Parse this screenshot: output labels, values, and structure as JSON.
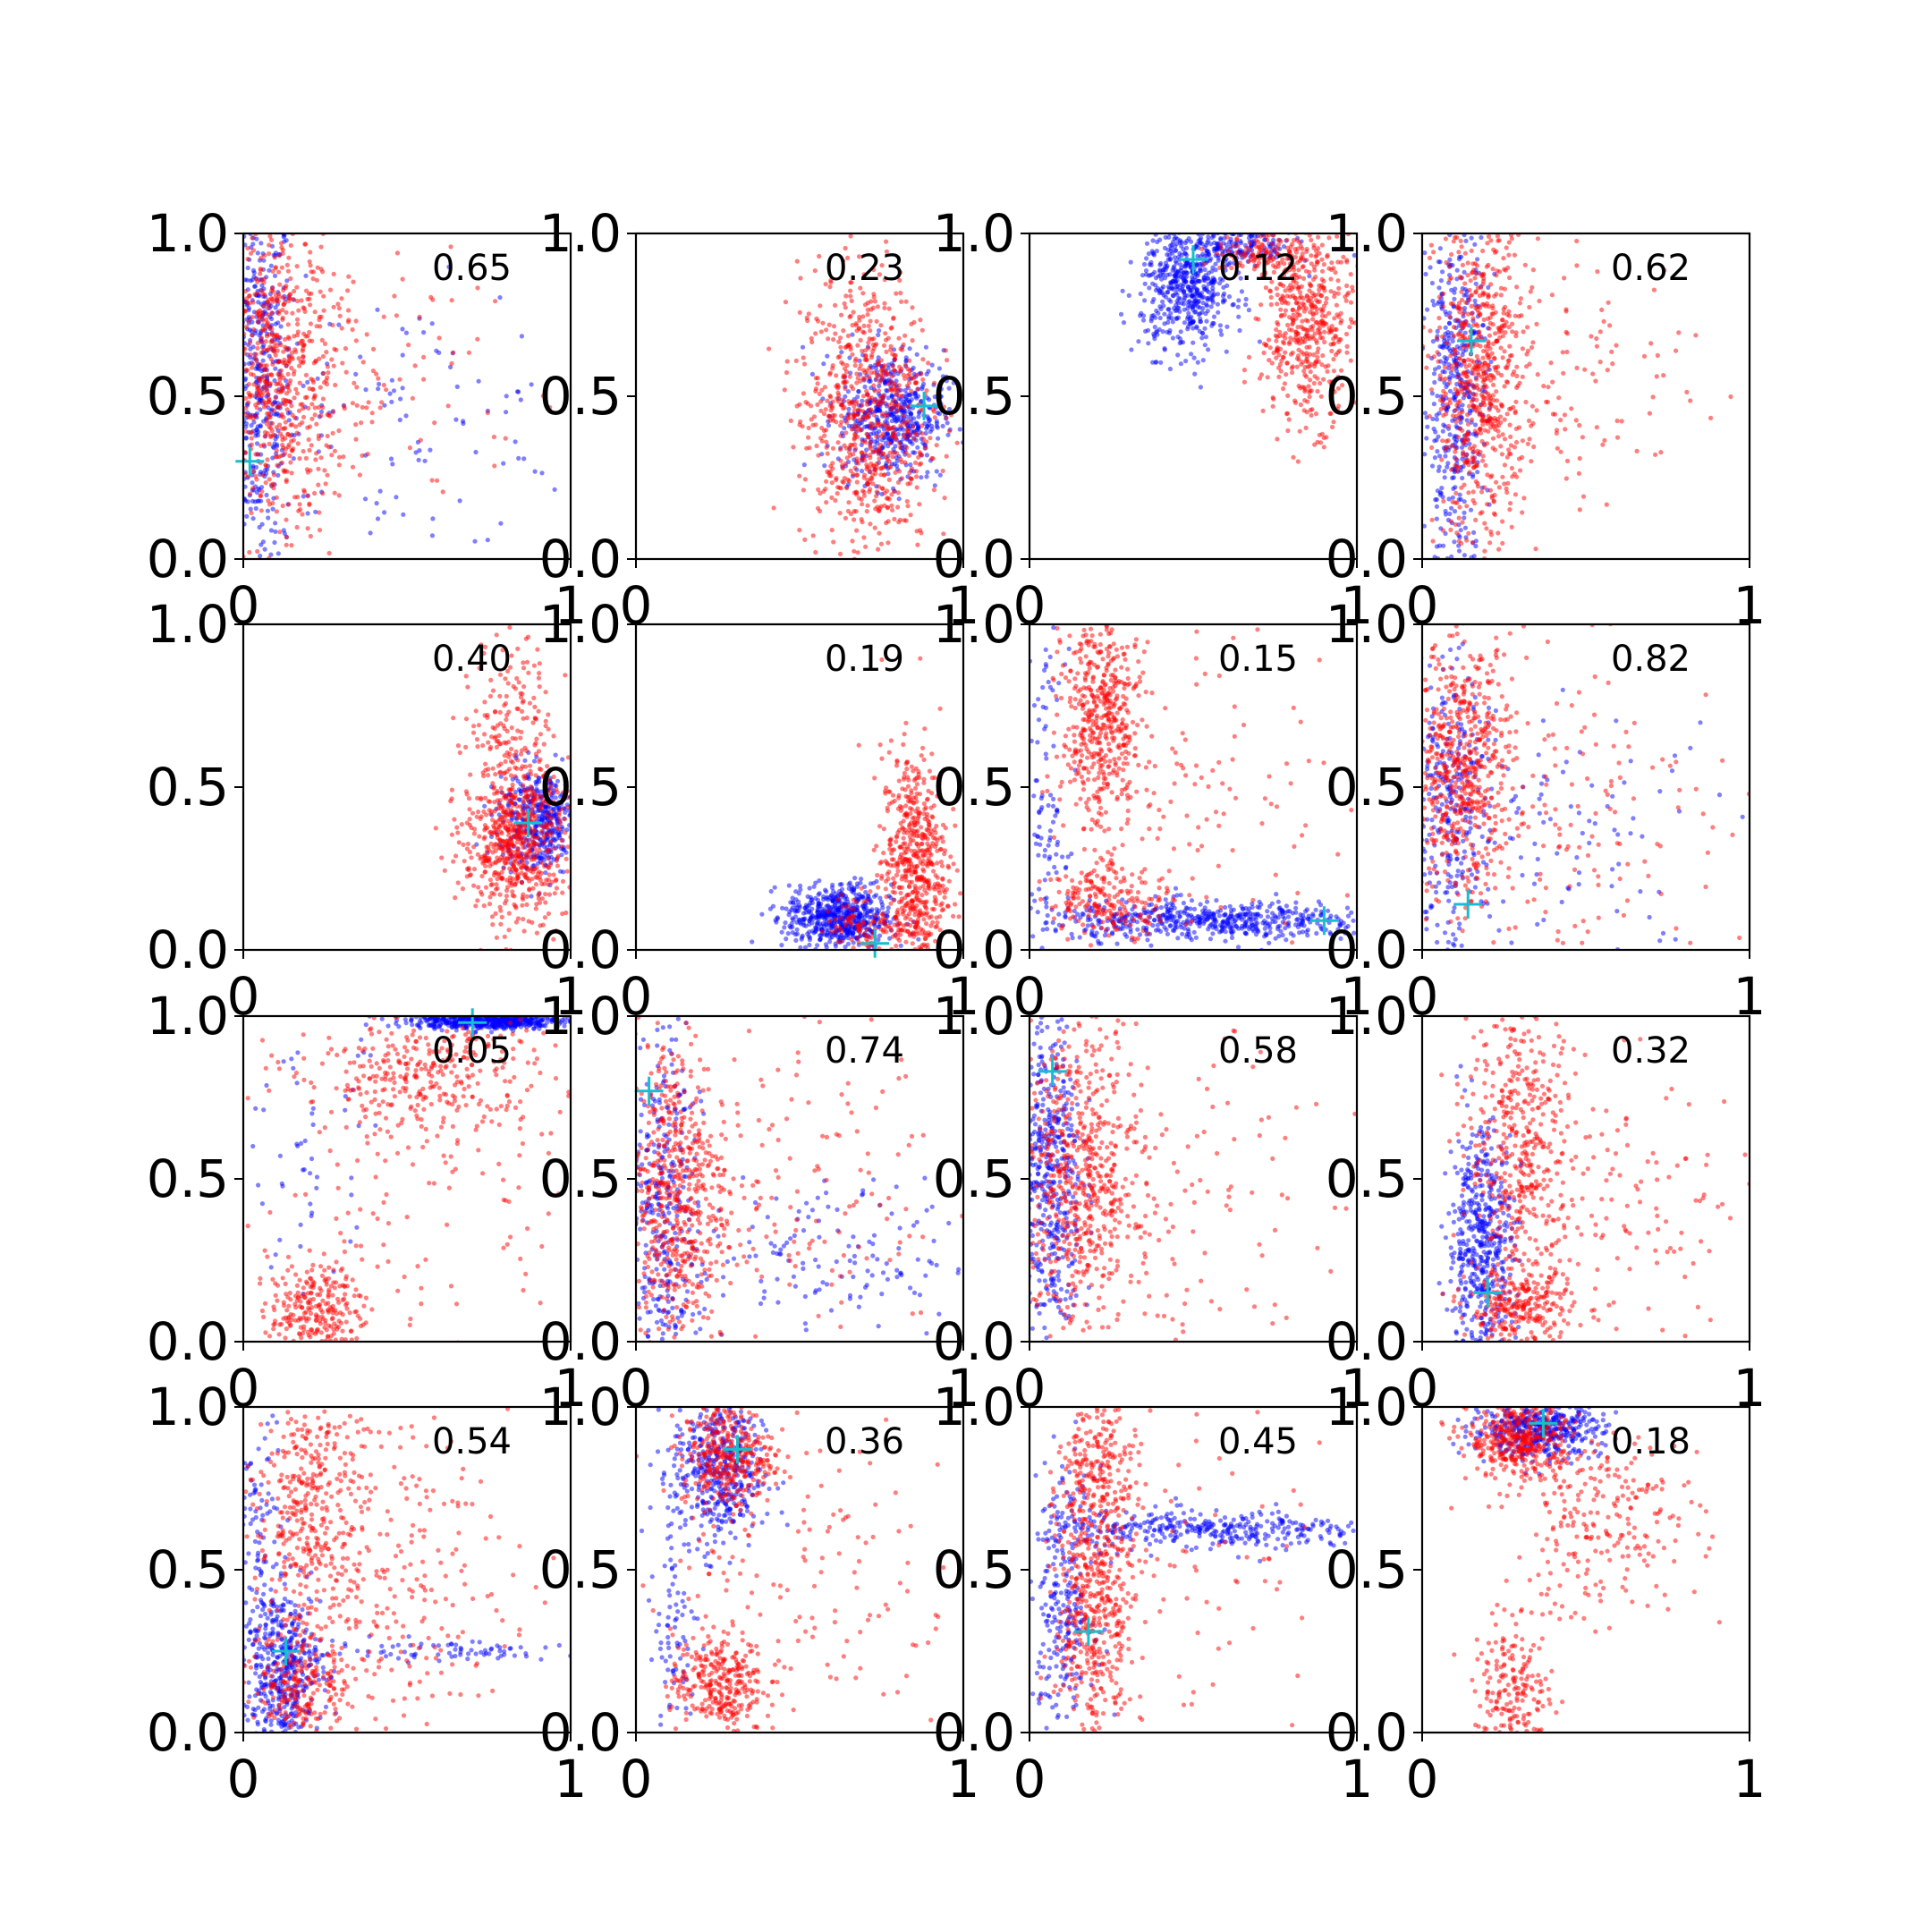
{
  "chart_data": {
    "type": "scatter",
    "rows": 4,
    "cols": 4,
    "xlim": [
      0,
      1
    ],
    "ylim": [
      0,
      1
    ],
    "xticks": [
      "0",
      "1"
    ],
    "yticks": [
      "0.0",
      "0.5",
      "1.0"
    ],
    "grid": false,
    "legend": "none",
    "colors": {
      "series_a": "#0000ff",
      "series_b": "#ff0000",
      "marker": "#17becf",
      "axis": "#000000"
    },
    "panels": [
      {
        "score": "0.65",
        "marker": [
          0.02,
          0.3
        ],
        "series_a": [
          {
            "cx": 0.05,
            "cy": 0.55,
            "sx": 0.05,
            "sy": 0.3,
            "n": 450
          },
          {
            "cx": 0.45,
            "cy": 0.42,
            "sx": 0.3,
            "sy": 0.2,
            "n": 120
          }
        ],
        "series_b": [
          {
            "cx": 0.1,
            "cy": 0.55,
            "sx": 0.09,
            "sy": 0.25,
            "n": 650
          },
          {
            "cx": 0.35,
            "cy": 0.55,
            "sx": 0.25,
            "sy": 0.25,
            "n": 140
          }
        ]
      },
      {
        "score": "0.23",
        "marker": [
          0.88,
          0.47
        ],
        "series_a": [
          {
            "cx": 0.78,
            "cy": 0.44,
            "sx": 0.08,
            "sy": 0.1,
            "n": 520
          }
        ],
        "series_b": [
          {
            "cx": 0.7,
            "cy": 0.45,
            "sx": 0.1,
            "sy": 0.22,
            "n": 750
          }
        ]
      },
      {
        "score": "0.12",
        "marker": [
          0.5,
          0.92
        ],
        "series_a": [
          {
            "cx": 0.48,
            "cy": 0.84,
            "sx": 0.07,
            "sy": 0.1,
            "n": 550
          },
          {
            "cx": 0.65,
            "cy": 0.96,
            "sx": 0.08,
            "sy": 0.03,
            "n": 150
          }
        ],
        "series_b": [
          {
            "cx": 0.85,
            "cy": 0.72,
            "sx": 0.07,
            "sy": 0.15,
            "n": 500
          },
          {
            "cx": 0.72,
            "cy": 0.94,
            "sx": 0.08,
            "sy": 0.04,
            "n": 120
          }
        ]
      },
      {
        "score": "0.62",
        "marker": [
          0.15,
          0.67
        ],
        "series_a": [
          {
            "cx": 0.1,
            "cy": 0.5,
            "sx": 0.05,
            "sy": 0.28,
            "n": 450
          }
        ],
        "series_b": [
          {
            "cx": 0.18,
            "cy": 0.55,
            "sx": 0.07,
            "sy": 0.25,
            "n": 650
          },
          {
            "cx": 0.45,
            "cy": 0.55,
            "sx": 0.2,
            "sy": 0.2,
            "n": 130
          }
        ]
      },
      {
        "score": "0.40",
        "marker": [
          0.87,
          0.39
        ],
        "series_a": [
          {
            "cx": 0.9,
            "cy": 0.4,
            "sx": 0.06,
            "sy": 0.08,
            "n": 420
          }
        ],
        "series_b": [
          {
            "cx": 0.83,
            "cy": 0.33,
            "sx": 0.08,
            "sy": 0.12,
            "n": 650
          },
          {
            "cx": 0.82,
            "cy": 0.72,
            "sx": 0.06,
            "sy": 0.14,
            "n": 150
          }
        ]
      },
      {
        "score": "0.19",
        "marker": [
          0.73,
          0.02
        ],
        "series_a": [
          {
            "cx": 0.62,
            "cy": 0.1,
            "sx": 0.08,
            "sy": 0.05,
            "n": 600
          }
        ],
        "series_b": [
          {
            "cx": 0.85,
            "cy": 0.25,
            "sx": 0.05,
            "sy": 0.18,
            "n": 600
          },
          {
            "cx": 0.7,
            "cy": 0.08,
            "sx": 0.06,
            "sy": 0.05,
            "n": 100
          }
        ]
      },
      {
        "score": "0.15",
        "marker": [
          0.9,
          0.09
        ],
        "series_a": [
          {
            "cx": 0.55,
            "cy": 0.09,
            "sx": 0.25,
            "sy": 0.03,
            "n": 550
          },
          {
            "cx": 0.05,
            "cy": 0.4,
            "sx": 0.03,
            "sy": 0.25,
            "n": 100
          }
        ],
        "series_b": [
          {
            "cx": 0.22,
            "cy": 0.7,
            "sx": 0.06,
            "sy": 0.18,
            "n": 500
          },
          {
            "cx": 0.25,
            "cy": 0.15,
            "sx": 0.1,
            "sy": 0.05,
            "n": 200
          },
          {
            "cx": 0.5,
            "cy": 0.5,
            "sx": 0.25,
            "sy": 0.25,
            "n": 120
          }
        ]
      },
      {
        "score": "0.82",
        "marker": [
          0.14,
          0.14
        ],
        "series_a": [
          {
            "cx": 0.08,
            "cy": 0.4,
            "sx": 0.06,
            "sy": 0.25,
            "n": 300
          },
          {
            "cx": 0.45,
            "cy": 0.35,
            "sx": 0.25,
            "sy": 0.2,
            "n": 100
          }
        ],
        "series_b": [
          {
            "cx": 0.12,
            "cy": 0.55,
            "sx": 0.08,
            "sy": 0.2,
            "n": 600
          },
          {
            "cx": 0.5,
            "cy": 0.4,
            "sx": 0.25,
            "sy": 0.25,
            "n": 150
          }
        ]
      },
      {
        "score": "0.05",
        "marker": [
          0.7,
          0.98
        ],
        "series_a": [
          {
            "cx": 0.75,
            "cy": 0.985,
            "sx": 0.12,
            "sy": 0.012,
            "n": 550
          },
          {
            "cx": 0.2,
            "cy": 0.6,
            "sx": 0.08,
            "sy": 0.25,
            "n": 60
          }
        ],
        "series_b": [
          {
            "cx": 0.55,
            "cy": 0.82,
            "sx": 0.2,
            "sy": 0.1,
            "n": 350
          },
          {
            "cx": 0.22,
            "cy": 0.1,
            "sx": 0.07,
            "sy": 0.07,
            "n": 250
          },
          {
            "cx": 0.5,
            "cy": 0.45,
            "sx": 0.25,
            "sy": 0.25,
            "n": 100
          }
        ]
      },
      {
        "score": "0.74",
        "marker": [
          0.04,
          0.77
        ],
        "series_a": [
          {
            "cx": 0.08,
            "cy": 0.4,
            "sx": 0.06,
            "sy": 0.28,
            "n": 350
          },
          {
            "cx": 0.55,
            "cy": 0.25,
            "sx": 0.25,
            "sy": 0.12,
            "n": 150
          }
        ],
        "series_b": [
          {
            "cx": 0.12,
            "cy": 0.45,
            "sx": 0.08,
            "sy": 0.25,
            "n": 600
          },
          {
            "cx": 0.45,
            "cy": 0.5,
            "sx": 0.25,
            "sy": 0.25,
            "n": 150
          }
        ]
      },
      {
        "score": "0.58",
        "marker": [
          0.07,
          0.83
        ],
        "series_a": [
          {
            "cx": 0.06,
            "cy": 0.5,
            "sx": 0.05,
            "sy": 0.28,
            "n": 500
          }
        ],
        "series_b": [
          {
            "cx": 0.15,
            "cy": 0.5,
            "sx": 0.09,
            "sy": 0.25,
            "n": 600
          },
          {
            "cx": 0.45,
            "cy": 0.4,
            "sx": 0.25,
            "sy": 0.25,
            "n": 150
          }
        ]
      },
      {
        "score": "0.32",
        "marker": [
          0.2,
          0.15
        ],
        "series_a": [
          {
            "cx": 0.18,
            "cy": 0.3,
            "sx": 0.05,
            "sy": 0.18,
            "n": 500
          }
        ],
        "series_b": [
          {
            "cx": 0.3,
            "cy": 0.6,
            "sx": 0.08,
            "sy": 0.25,
            "n": 450
          },
          {
            "cx": 0.3,
            "cy": 0.1,
            "sx": 0.08,
            "sy": 0.06,
            "n": 250
          },
          {
            "cx": 0.6,
            "cy": 0.4,
            "sx": 0.22,
            "sy": 0.22,
            "n": 150
          }
        ]
      },
      {
        "score": "0.54",
        "marker": [
          0.13,
          0.25
        ],
        "series_a": [
          {
            "cx": 0.12,
            "cy": 0.2,
            "sx": 0.06,
            "sy": 0.12,
            "n": 450
          },
          {
            "cx": 0.55,
            "cy": 0.25,
            "sx": 0.25,
            "sy": 0.02,
            "n": 80
          },
          {
            "cx": 0.05,
            "cy": 0.6,
            "sx": 0.04,
            "sy": 0.2,
            "n": 100
          }
        ],
        "series_b": [
          {
            "cx": 0.2,
            "cy": 0.7,
            "sx": 0.08,
            "sy": 0.2,
            "n": 350
          },
          {
            "cx": 0.4,
            "cy": 0.45,
            "sx": 0.2,
            "sy": 0.25,
            "n": 300
          },
          {
            "cx": 0.18,
            "cy": 0.15,
            "sx": 0.07,
            "sy": 0.08,
            "n": 200
          }
        ]
      },
      {
        "score": "0.36",
        "marker": [
          0.31,
          0.87
        ],
        "series_a": [
          {
            "cx": 0.25,
            "cy": 0.8,
            "sx": 0.07,
            "sy": 0.12,
            "n": 450
          },
          {
            "cx": 0.12,
            "cy": 0.3,
            "sx": 0.04,
            "sy": 0.2,
            "n": 80
          }
        ],
        "series_b": [
          {
            "cx": 0.28,
            "cy": 0.85,
            "sx": 0.07,
            "sy": 0.08,
            "n": 350
          },
          {
            "cx": 0.25,
            "cy": 0.15,
            "sx": 0.07,
            "sy": 0.08,
            "n": 300
          },
          {
            "cx": 0.5,
            "cy": 0.5,
            "sx": 0.25,
            "sy": 0.25,
            "n": 150
          }
        ]
      },
      {
        "score": "0.45",
        "marker": [
          0.18,
          0.31
        ],
        "series_a": [
          {
            "cx": 0.55,
            "cy": 0.62,
            "sx": 0.25,
            "sy": 0.03,
            "n": 350
          },
          {
            "cx": 0.1,
            "cy": 0.4,
            "sx": 0.05,
            "sy": 0.2,
            "n": 250
          }
        ],
        "series_b": [
          {
            "cx": 0.2,
            "cy": 0.4,
            "sx": 0.06,
            "sy": 0.25,
            "n": 550
          },
          {
            "cx": 0.22,
            "cy": 0.85,
            "sx": 0.06,
            "sy": 0.1,
            "n": 150
          },
          {
            "cx": 0.5,
            "cy": 0.5,
            "sx": 0.25,
            "sy": 0.25,
            "n": 80
          }
        ]
      },
      {
        "score": "0.18",
        "marker": [
          0.37,
          0.95
        ],
        "series_a": [
          {
            "cx": 0.35,
            "cy": 0.93,
            "sx": 0.1,
            "sy": 0.04,
            "n": 450
          }
        ],
        "series_b": [
          {
            "cx": 0.3,
            "cy": 0.9,
            "sx": 0.08,
            "sy": 0.06,
            "n": 400
          },
          {
            "cx": 0.55,
            "cy": 0.65,
            "sx": 0.15,
            "sy": 0.15,
            "n": 250
          },
          {
            "cx": 0.28,
            "cy": 0.12,
            "sx": 0.06,
            "sy": 0.1,
            "n": 200
          }
        ]
      }
    ]
  }
}
